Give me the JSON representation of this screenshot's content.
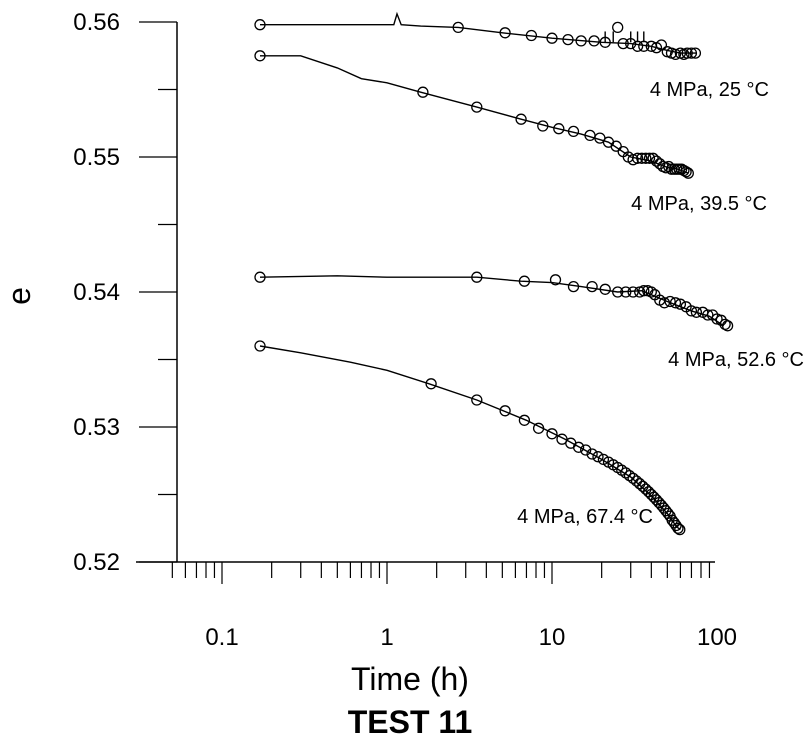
{
  "chart_data": {
    "type": "scatter",
    "title": "TEST 11",
    "xlabel": "Time (h)",
    "ylabel": "e",
    "x_scale": "log",
    "xlim": [
      0.05,
      100
    ],
    "ylim": [
      0.52,
      0.56
    ],
    "x_tick_labels": [
      "0.1",
      "1",
      "10",
      "100"
    ],
    "y_tick_labels": [
      "0.52",
      "0.53",
      "0.54",
      "0.55",
      "0.56"
    ],
    "series": [
      {
        "name": "4 MPa, 25 °C",
        "line": [
          [
            0.17,
            0.5598
          ],
          [
            1.1,
            0.5598
          ],
          [
            1.15,
            0.5606
          ],
          [
            1.22,
            0.5598
          ],
          [
            1.6,
            0.5597
          ],
          [
            2.7,
            0.5596
          ],
          [
            5,
            0.5592
          ],
          [
            10,
            0.5588
          ],
          [
            20,
            0.5585
          ],
          [
            30,
            0.5584
          ],
          [
            40,
            0.5582
          ],
          [
            50,
            0.5579
          ],
          [
            60,
            0.5577
          ],
          [
            75,
            0.5577
          ]
        ],
        "markers": [
          [
            0.17,
            0.5598
          ],
          [
            2.7,
            0.5596
          ],
          [
            5.2,
            0.5592
          ],
          [
            7.5,
            0.559
          ],
          [
            10,
            0.5588
          ],
          [
            12.5,
            0.5587
          ],
          [
            15,
            0.5586
          ],
          [
            18,
            0.5586
          ],
          [
            21,
            0.5585
          ],
          [
            25,
            0.5596
          ],
          [
            27,
            0.5584
          ],
          [
            30,
            0.5584
          ],
          [
            33,
            0.5582
          ],
          [
            36,
            0.5582
          ],
          [
            40,
            0.5582
          ],
          [
            43,
            0.5581
          ],
          [
            46,
            0.5583
          ],
          [
            50,
            0.5578
          ],
          [
            53,
            0.5577
          ],
          [
            56,
            0.5576
          ],
          [
            60,
            0.5577
          ],
          [
            63,
            0.5576
          ],
          [
            66,
            0.5577
          ],
          [
            70,
            0.5577
          ],
          [
            74,
            0.5577
          ]
        ]
      },
      {
        "name": "4 MPa, 39.5 °C",
        "line": [
          [
            0.17,
            0.5575
          ],
          [
            0.3,
            0.5575
          ],
          [
            0.5,
            0.5566
          ],
          [
            0.7,
            0.5558
          ],
          [
            1,
            0.5555
          ],
          [
            1.6,
            0.5548
          ],
          [
            3.5,
            0.5537
          ],
          [
            6.5,
            0.5528
          ],
          [
            10,
            0.5522
          ],
          [
            15,
            0.5517
          ],
          [
            22,
            0.5511
          ],
          [
            30,
            0.55
          ],
          [
            40,
            0.5497
          ],
          [
            48,
            0.5493
          ],
          [
            58,
            0.5491
          ],
          [
            67,
            0.5488
          ]
        ],
        "markers": [
          [
            0.17,
            0.5575
          ],
          [
            1.65,
            0.5548
          ],
          [
            3.5,
            0.5537
          ],
          [
            6.5,
            0.5528
          ],
          [
            8.8,
            0.5523
          ],
          [
            11,
            0.5521
          ],
          [
            13.5,
            0.5519
          ],
          [
            17,
            0.5516
          ],
          [
            19.5,
            0.5514
          ],
          [
            22,
            0.5511
          ],
          [
            24.5,
            0.5508
          ],
          [
            27,
            0.5504
          ],
          [
            29,
            0.55
          ],
          [
            31,
            0.5498
          ],
          [
            33,
            0.5499
          ],
          [
            35,
            0.5499
          ],
          [
            37,
            0.5499
          ],
          [
            39,
            0.5499
          ],
          [
            41,
            0.5499
          ],
          [
            43,
            0.5497
          ],
          [
            45,
            0.5495
          ],
          [
            47,
            0.5493
          ],
          [
            49,
            0.5492
          ],
          [
            51,
            0.5493
          ],
          [
            53,
            0.5491
          ],
          [
            55,
            0.5491
          ],
          [
            57,
            0.5491
          ],
          [
            59,
            0.5491
          ],
          [
            61,
            0.5491
          ],
          [
            63,
            0.549
          ],
          [
            65,
            0.5489
          ],
          [
            67,
            0.5488
          ]
        ]
      },
      {
        "name": "4 MPa, 52.6 °C",
        "line": [
          [
            0.17,
            0.5411
          ],
          [
            0.5,
            0.5412
          ],
          [
            1,
            0.5411
          ],
          [
            2,
            0.5411
          ],
          [
            3.5,
            0.5411
          ],
          [
            6.5,
            0.5408
          ],
          [
            10,
            0.5407
          ],
          [
            15,
            0.5404
          ],
          [
            25,
            0.54
          ],
          [
            35,
            0.5401
          ],
          [
            50,
            0.5393
          ],
          [
            70,
            0.5386
          ],
          [
            90,
            0.5382
          ],
          [
            110,
            0.5375
          ]
        ],
        "markers": [
          [
            0.17,
            0.5411
          ],
          [
            3.5,
            0.5411
          ],
          [
            6.8,
            0.5408
          ],
          [
            10.5,
            0.5409
          ],
          [
            13.5,
            0.5404
          ],
          [
            17.5,
            0.5404
          ],
          [
            21,
            0.5402
          ],
          [
            25,
            0.54
          ],
          [
            28,
            0.54
          ],
          [
            31,
            0.54
          ],
          [
            34,
            0.54
          ],
          [
            36,
            0.5401
          ],
          [
            38,
            0.5401
          ],
          [
            40,
            0.54
          ],
          [
            42,
            0.5398
          ],
          [
            45,
            0.5394
          ],
          [
            48,
            0.5392
          ],
          [
            52,
            0.5393
          ],
          [
            56,
            0.5392
          ],
          [
            60,
            0.5391
          ],
          [
            65,
            0.5389
          ],
          [
            70,
            0.5386
          ],
          [
            75,
            0.5385
          ],
          [
            82,
            0.5385
          ],
          [
            88,
            0.5383
          ],
          [
            94,
            0.5383
          ],
          [
            100,
            0.538
          ],
          [
            106,
            0.5379
          ],
          [
            112,
            0.5376
          ],
          [
            116,
            0.5375
          ]
        ]
      },
      {
        "name": "4 MPa, 67.4 °C",
        "line": [
          [
            0.17,
            0.536
          ],
          [
            0.3,
            0.5355
          ],
          [
            0.6,
            0.5348
          ],
          [
            1,
            0.5342
          ],
          [
            1.8,
            0.5332
          ],
          [
            3.5,
            0.532
          ],
          [
            7,
            0.5305
          ],
          [
            12,
            0.5291
          ],
          [
            20,
            0.5276
          ],
          [
            30,
            0.5263
          ],
          [
            40,
            0.5249
          ],
          [
            50,
            0.5236
          ],
          [
            57,
            0.5226
          ],
          [
            60,
            0.5224
          ]
        ],
        "markers": [
          [
            0.17,
            0.536
          ],
          [
            1.85,
            0.5332
          ],
          [
            3.5,
            0.532
          ],
          [
            5.2,
            0.5312
          ],
          [
            6.8,
            0.5305
          ],
          [
            8.3,
            0.5299
          ],
          [
            10,
            0.5295
          ],
          [
            11.5,
            0.5291
          ],
          [
            13,
            0.5288
          ],
          [
            14.5,
            0.5285
          ],
          [
            16,
            0.5283
          ],
          [
            17.5,
            0.528
          ],
          [
            19,
            0.5278
          ],
          [
            20.5,
            0.5276
          ],
          [
            22,
            0.5274
          ],
          [
            23.5,
            0.5272
          ],
          [
            25,
            0.527
          ],
          [
            26.5,
            0.5268
          ],
          [
            28,
            0.5266
          ],
          [
            29.5,
            0.5264
          ],
          [
            31,
            0.5262
          ],
          [
            32.5,
            0.526
          ],
          [
            34,
            0.5258
          ],
          [
            35.5,
            0.5256
          ],
          [
            37,
            0.5254
          ],
          [
            38.5,
            0.5252
          ],
          [
            40,
            0.525
          ],
          [
            41.5,
            0.5248
          ],
          [
            43,
            0.5246
          ],
          [
            44.5,
            0.5244
          ],
          [
            46,
            0.5242
          ],
          [
            47.5,
            0.524
          ],
          [
            49,
            0.5238
          ],
          [
            50.5,
            0.5236
          ],
          [
            52,
            0.5234
          ],
          [
            53.5,
            0.5231
          ],
          [
            55,
            0.5229
          ],
          [
            56.5,
            0.5227
          ],
          [
            58,
            0.5225
          ],
          [
            59.5,
            0.5224
          ]
        ]
      }
    ]
  }
}
